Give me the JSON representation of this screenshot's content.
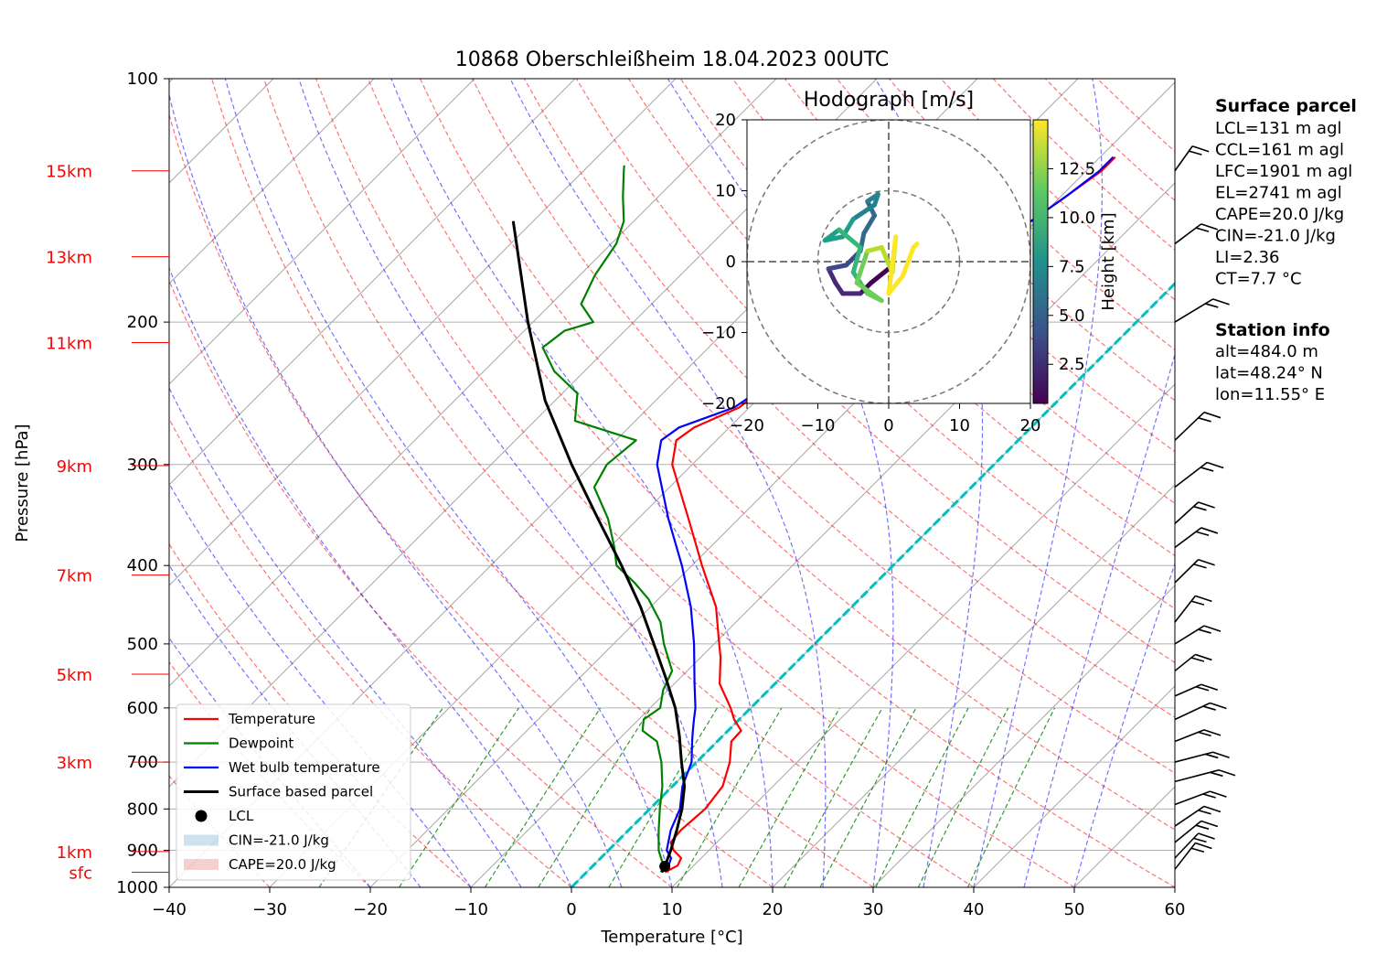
{
  "title": "10868 Oberschleißheim 18.04.2023 00UTC",
  "colors": {
    "temperature": "#ff0000",
    "dewpoint": "#008000",
    "wetbulb": "#0000ff",
    "parcel": "#000000",
    "dry_adiabat": "#ff0000",
    "moist_adiabat": "#0000ff",
    "mixing_ratio": "#008000",
    "isotherm": "#808080",
    "zero_isotherm": "#00bfbf",
    "cin_fill": "#1f77b4",
    "cape_fill": "#d62728"
  },
  "chart_data": [
    {
      "type": "line",
      "subtype": "skew-T log-p diagram",
      "title": "10868 Oberschleißheim 18.04.2023 00UTC",
      "xlabel": "Temperature [°C]",
      "ylabel": "Pressure [hPa]",
      "xlim": [
        -40,
        60
      ],
      "ylim": [
        1000,
        100
      ],
      "y_scale": "log",
      "x_ticks": [
        "−40",
        "−30",
        "−20",
        "−10",
        "0",
        "10",
        "20",
        "30",
        "40",
        "50",
        "60"
      ],
      "x_tick_values": [
        -40,
        -30,
        -20,
        -10,
        0,
        10,
        20,
        30,
        40,
        50,
        60
      ],
      "y_ticks": [
        "100",
        "200",
        "300",
        "400",
        "500",
        "600",
        "700",
        "800",
        "900",
        "1000"
      ],
      "y_tick_values": [
        100,
        200,
        300,
        400,
        500,
        600,
        700,
        800,
        900,
        1000
      ],
      "grid": true,
      "height_labels": [
        {
          "label": "15km",
          "p": 130
        },
        {
          "label": "13km",
          "p": 166
        },
        {
          "label": "11km",
          "p": 212
        },
        {
          "label": "9km",
          "p": 301
        },
        {
          "label": "7km",
          "p": 411
        },
        {
          "label": "5km",
          "p": 545
        },
        {
          "label": "3km",
          "p": 700
        },
        {
          "label": "1km",
          "p": 903
        },
        {
          "label": "sfc",
          "p": 958
        }
      ],
      "legend": {
        "placement": "lower-left",
        "entries": [
          "Temperature",
          "Dewpoint",
          "Wet bulb temperature",
          "Surface based parcel",
          "LCL",
          "CIN=-21.0 J/kg",
          "CAPE=20.0 J/kg"
        ]
      },
      "series": [
        {
          "name": "Temperature",
          "points": [
            [
              958,
              7.8
            ],
            [
              940,
              8.4
            ],
            [
              920,
              8.0
            ],
            [
              900,
              6.5
            ],
            [
              880,
              5.4
            ],
            [
              850,
              5.2
            ],
            [
              800,
              5.5
            ],
            [
              750,
              5.0
            ],
            [
              700,
              3.3
            ],
            [
              660,
              1.4
            ],
            [
              640,
              1.3
            ],
            [
              620,
              -0.5
            ],
            [
              600,
              -2.0
            ],
            [
              560,
              -5.5
            ],
            [
              520,
              -8.0
            ],
            [
              500,
              -9.5
            ],
            [
              450,
              -13.5
            ],
            [
              400,
              -19.0
            ],
            [
              350,
              -25.0
            ],
            [
              300,
              -32.0
            ],
            [
              280,
              -34.0
            ],
            [
              270,
              -33.5
            ],
            [
              255,
              -31.0
            ],
            [
              240,
              -30.5
            ],
            [
              225,
              -29.5
            ],
            [
              210,
              -28.5
            ],
            [
              195,
              -26.5
            ],
            [
              180,
              -23.5
            ],
            [
              170,
              -22.5
            ],
            [
              160,
              -21.5
            ],
            [
              150,
              -20.5
            ],
            [
              140,
              -19.5
            ],
            [
              130,
              -18.5
            ],
            [
              125,
              -18.5
            ]
          ]
        },
        {
          "name": "Dewpoint",
          "points": [
            [
              958,
              7.4
            ],
            [
              940,
              7.0
            ],
            [
              920,
              6.0
            ],
            [
              900,
              5.0
            ],
            [
              850,
              3.0
            ],
            [
              800,
              1.0
            ],
            [
              750,
              -1.0
            ],
            [
              700,
              -3.5
            ],
            [
              660,
              -6.0
            ],
            [
              640,
              -8.5
            ],
            [
              620,
              -9.5
            ],
            [
              600,
              -9.0
            ],
            [
              570,
              -10.5
            ],
            [
              540,
              -11.5
            ],
            [
              500,
              -15.0
            ],
            [
              470,
              -17.5
            ],
            [
              440,
              -21.0
            ],
            [
              420,
              -24.0
            ],
            [
              400,
              -27.5
            ],
            [
              380,
              -29.5
            ],
            [
              350,
              -33.0
            ],
            [
              320,
              -37.5
            ],
            [
              300,
              -38.5
            ],
            [
              280,
              -38.0
            ],
            [
              265,
              -46.0
            ],
            [
              245,
              -48.5
            ],
            [
              230,
              -53.0
            ],
            [
              215,
              -56.5
            ],
            [
              205,
              -56.0
            ],
            [
              200,
              -54.0
            ],
            [
              190,
              -57.0
            ],
            [
              175,
              -58.5
            ],
            [
              160,
              -59.5
            ],
            [
              150,
              -61.0
            ],
            [
              140,
              -63.5
            ],
            [
              130,
              -66.0
            ],
            [
              128,
              -66.5
            ]
          ]
        },
        {
          "name": "Wet bulb temperature",
          "points": [
            [
              958,
              7.5
            ],
            [
              940,
              7.5
            ],
            [
              920,
              7.0
            ],
            [
              900,
              5.8
            ],
            [
              850,
              4.2
            ],
            [
              800,
              3.0
            ],
            [
              750,
              1.0
            ],
            [
              700,
              -0.5
            ],
            [
              660,
              -2.5
            ],
            [
              640,
              -3.5
            ],
            [
              620,
              -4.5
            ],
            [
              600,
              -5.5
            ],
            [
              560,
              -8.0
            ],
            [
              500,
              -12.0
            ],
            [
              450,
              -16.0
            ],
            [
              400,
              -21.0
            ],
            [
              350,
              -27.0
            ],
            [
              300,
              -33.5
            ],
            [
              280,
              -35.5
            ],
            [
              270,
              -35.0
            ],
            [
              255,
              -31.5
            ],
            [
              240,
              -30.5
            ],
            [
              225,
              -29.5
            ],
            [
              210,
              -28.5
            ],
            [
              195,
              -26.5
            ],
            [
              180,
              -23.5
            ],
            [
              170,
              -22.5
            ],
            [
              160,
              -21.5
            ],
            [
              150,
              -20.5
            ],
            [
              140,
              -19.5
            ],
            [
              130,
              -18.7
            ],
            [
              125,
              -18.7
            ]
          ]
        },
        {
          "name": "Surface based parcel",
          "points": [
            [
              958,
              7.5
            ],
            [
              942,
              7.2
            ],
            [
              900,
              6.2
            ],
            [
              850,
              4.8
            ],
            [
              800,
              3.2
            ],
            [
              750,
              1.2
            ],
            [
              700,
              -1.5
            ],
            [
              650,
              -4.3
            ],
            [
              600,
              -7.5
            ],
            [
              550,
              -11.5
            ],
            [
              500,
              -16.0
            ],
            [
              450,
              -21.0
            ],
            [
              400,
              -27.0
            ],
            [
              350,
              -34.0
            ],
            [
              300,
              -42.0
            ],
            [
              250,
              -51.0
            ],
            [
              200,
              -60.5
            ],
            [
              170,
              -67.0
            ],
            [
              150,
              -72.0
            ]
          ]
        }
      ],
      "lcl": {
        "p": 942,
        "t": 7.2
      },
      "zero_isotherm": 0,
      "wind_barbs": "right side, pressure levels 100–1000 hPa"
    },
    {
      "type": "line",
      "subtype": "hodograph",
      "title": "Hodograph [m/s]",
      "xlim": [
        -20,
        20
      ],
      "ylim": [
        -20,
        20
      ],
      "x_ticks": [
        "−20",
        "−10",
        "0",
        "10",
        "20"
      ],
      "y_ticks": [
        "20",
        "10",
        "0",
        "−10",
        "−20"
      ],
      "rings": [
        10,
        20
      ],
      "colorbar": {
        "label": "Height [km]",
        "ticks": [
          "2.5",
          "5.0",
          "7.5",
          "10.0",
          "12.5"
        ],
        "range": [
          0.5,
          15
        ],
        "colormap": "viridis"
      },
      "path": [
        [
          0.0,
          -1.0,
          0.5
        ],
        [
          -2.5,
          -3.0,
          1.0
        ],
        [
          -4.0,
          -4.5,
          1.5
        ],
        [
          -6.5,
          -4.5,
          2.0
        ],
        [
          -7.5,
          -3.0,
          2.5
        ],
        [
          -8.5,
          -1.0,
          3.0
        ],
        [
          -6.0,
          -0.5,
          3.5
        ],
        [
          -4.0,
          1.5,
          4.0
        ],
        [
          -3.5,
          4.0,
          5.0
        ],
        [
          -2.0,
          6.5,
          5.5
        ],
        [
          -3.0,
          8.5,
          6.0
        ],
        [
          -1.5,
          9.5,
          6.5
        ],
        [
          -2.0,
          8.0,
          7.0
        ],
        [
          -5.0,
          6.0,
          7.5
        ],
        [
          -6.5,
          3.5,
          8.0
        ],
        [
          -9.0,
          3.0,
          8.5
        ],
        [
          -7.0,
          4.5,
          9.0
        ],
        [
          -4.0,
          2.0,
          9.5
        ],
        [
          -5.0,
          -1.5,
          10.0
        ],
        [
          -3.0,
          -4.5,
          10.5
        ],
        [
          -1.0,
          -5.5,
          11.0
        ],
        [
          -4.5,
          -3.0,
          11.5
        ],
        [
          -3.0,
          1.5,
          12.0
        ],
        [
          -1.0,
          2.0,
          12.5
        ],
        [
          0.5,
          -1.5,
          13.0
        ],
        [
          1.0,
          3.5,
          13.5
        ],
        [
          0.0,
          -4.5,
          14.0
        ],
        [
          2.0,
          -2.0,
          14.3
        ],
        [
          3.5,
          2.0,
          14.6
        ],
        [
          4.0,
          2.5,
          15.0
        ]
      ]
    }
  ],
  "info": {
    "surface_heading": "Surface parcel",
    "surface_lines": [
      "LCL=131 m agl",
      "CCL=161 m agl",
      "LFC=1901 m agl",
      "EL=2741 m agl",
      "CAPE=20.0 J/kg",
      "CIN=-21.0 J/kg",
      "LI=2.36",
      "CT=7.7 °C"
    ],
    "station_heading": "Station info",
    "station_lines": [
      "alt=484.0 m",
      "lat=48.24° N",
      "lon=11.55° E"
    ]
  }
}
